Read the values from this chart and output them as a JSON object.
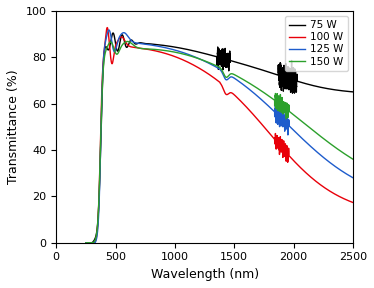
{
  "xlabel": "Wavelength (nm)",
  "ylabel": "Transmittance (%)",
  "xlim": [
    0,
    2500
  ],
  "ylim": [
    0,
    100
  ],
  "xticks": [
    0,
    500,
    1000,
    1500,
    2000,
    2500
  ],
  "yticks": [
    0,
    20,
    40,
    60,
    80,
    100
  ],
  "legend_labels": [
    "75 W",
    "100 W",
    "125 W",
    "150 W"
  ],
  "legend_colors": [
    "#000000",
    "#e8000a",
    "#1e5ccc",
    "#2ca02c"
  ],
  "linewidth": 1.0
}
